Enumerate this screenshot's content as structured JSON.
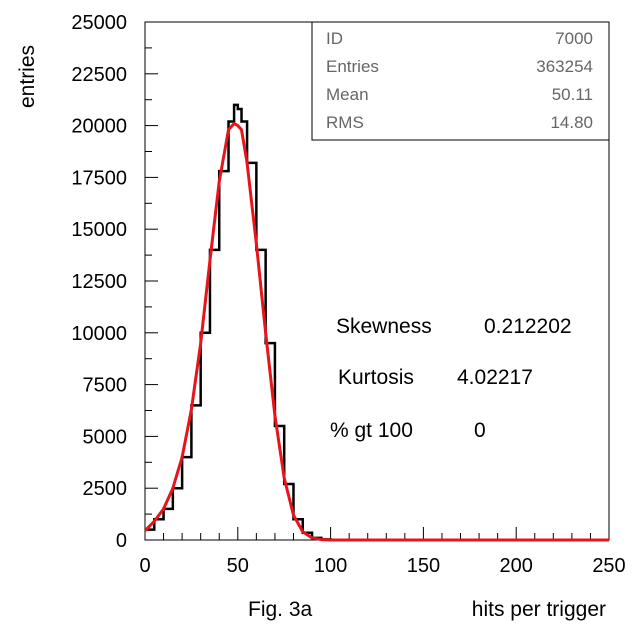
{
  "chart_data": {
    "type": "histogram",
    "xlabel": "hits per trigger",
    "ylabel": "entries",
    "caption": "Fig. 3a",
    "xlim": [
      0,
      250
    ],
    "ylim": [
      0,
      25000
    ],
    "x_ticks": [
      0,
      50,
      100,
      150,
      200,
      250
    ],
    "y_ticks": [
      0,
      2500,
      5000,
      7500,
      10000,
      12500,
      15000,
      17500,
      20000,
      22500,
      25000
    ],
    "grid": false,
    "stats_box": {
      "placement": "top-right",
      "rows": [
        {
          "label": "ID",
          "value": "7000"
        },
        {
          "label": "Entries",
          "value": "363254"
        },
        {
          "label": "Mean",
          "value": "50.11"
        },
        {
          "label": "RMS",
          "value": "14.80"
        }
      ]
    },
    "annotations": [
      {
        "label": "Skewness",
        "value": "0.212202"
      },
      {
        "label": "Kurtosis",
        "value": "4.02217"
      },
      {
        "label": "% gt 100",
        "value": "0"
      }
    ],
    "series": [
      {
        "kind": "histogram",
        "color": "#000000",
        "x": [
          0,
          5,
          10,
          15,
          20,
          25,
          30,
          35,
          40,
          45,
          48,
          50,
          52,
          55,
          60,
          65,
          70,
          75,
          80,
          85,
          90,
          95,
          100,
          110,
          120,
          150,
          200,
          250
        ],
        "y": [
          500,
          1000,
          1500,
          2500,
          4000,
          6500,
          10000,
          14000,
          17800,
          20200,
          21000,
          20800,
          20200,
          18200,
          14000,
          9500,
          5500,
          2700,
          1000,
          350,
          100,
          30,
          0,
          0,
          0,
          0,
          0,
          0
        ]
      },
      {
        "kind": "fit",
        "color": "#e8141c",
        "x": [
          0,
          5,
          10,
          15,
          20,
          25,
          30,
          35,
          40,
          45,
          48,
          50,
          52,
          55,
          60,
          65,
          70,
          75,
          80,
          85,
          90,
          95,
          100,
          110,
          120,
          150,
          200,
          250
        ],
        "y": [
          450,
          900,
          1500,
          2500,
          4000,
          6300,
          9500,
          13500,
          17300,
          19800,
          20100,
          20000,
          19800,
          18200,
          14300,
          10000,
          6000,
          3000,
          1200,
          400,
          100,
          20,
          0,
          0,
          0,
          0,
          0,
          0
        ]
      }
    ]
  }
}
